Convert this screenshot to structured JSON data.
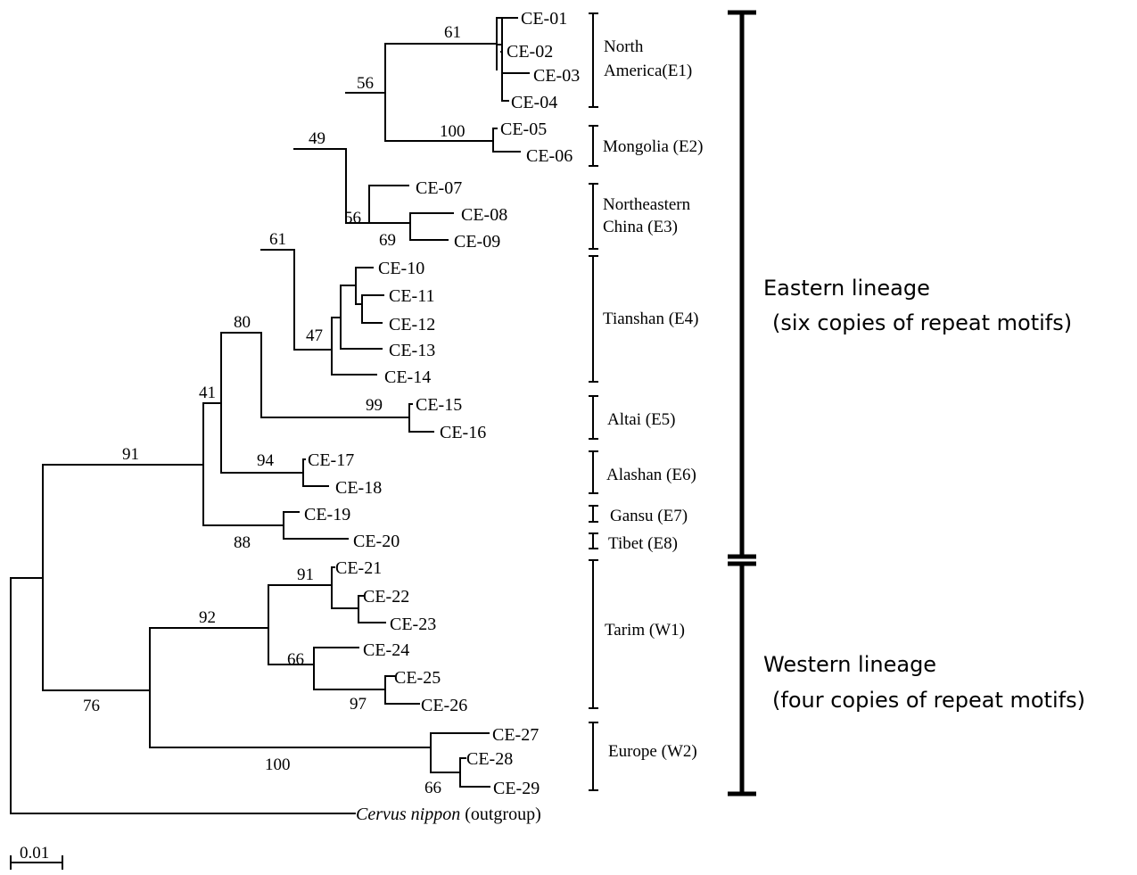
{
  "tips": [
    "CE-01",
    "CE-02",
    "CE-03",
    "CE-04",
    "CE-05",
    "CE-06",
    "CE-07",
    "CE-08",
    "CE-09",
    "CE-10",
    "CE-11",
    "CE-12",
    "CE-13",
    "CE-14",
    "CE-15",
    "CE-16",
    "CE-17",
    "CE-18",
    "CE-19",
    "CE-20",
    "CE-21",
    "CE-22",
    "CE-23",
    "CE-24",
    "CE-25",
    "CE-26",
    "CE-27",
    "CE-28",
    "CE-29"
  ],
  "outgroup": {
    "species": "Cervus nippon",
    "note": "(outgroup)"
  },
  "support": [
    "61",
    "56",
    "49",
    "100",
    "56",
    "69",
    "61",
    "47",
    "80",
    "99",
    "41",
    "94",
    "91",
    "88",
    "91",
    "92",
    "66",
    "97",
    "76",
    "100",
    "66"
  ],
  "groups": [
    "North",
    "America(E1)",
    "Mongolia (E2)",
    "Northeastern",
    "China (E3)",
    "Tianshan (E4)",
    "Altai (E5)",
    "Alashan (E6)",
    "Gansu (E7)",
    "Tibet (E8)",
    "Tarim (W1)",
    "Europe (W2)"
  ],
  "lineages": {
    "eastern": {
      "line1": "Eastern lineage",
      "line2": "(six copies of repeat motifs)"
    },
    "western": {
      "line1": "Western lineage",
      "line2": "(four copies of repeat motifs)"
    }
  },
  "scale_bar": {
    "label": "0.01"
  }
}
